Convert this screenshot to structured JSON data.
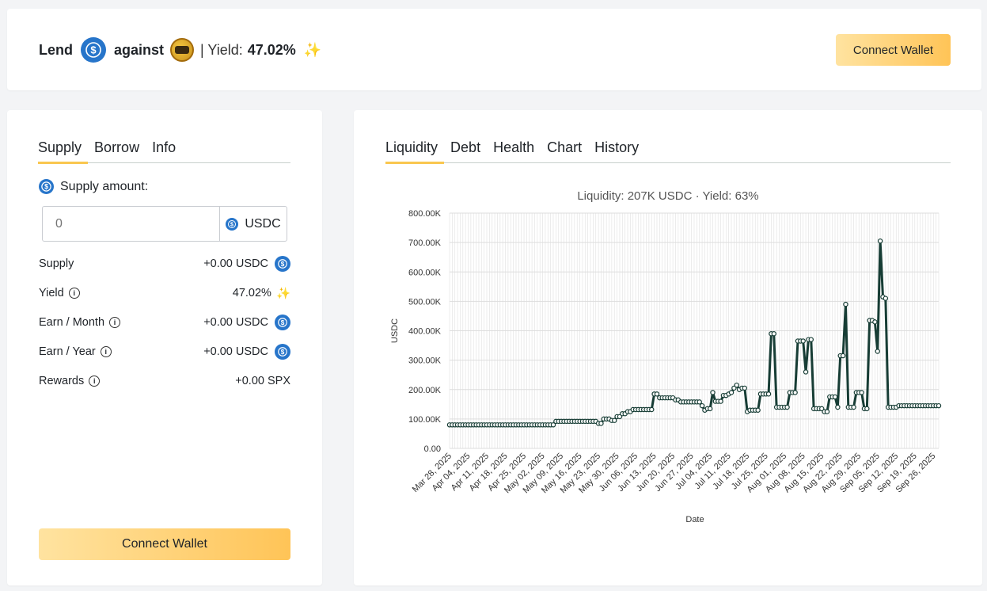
{
  "header": {
    "lend": "Lend",
    "against": "against",
    "yield_label": "| Yield:",
    "yield_value": "47.02%",
    "connect_wallet": "Connect Wallet"
  },
  "left_panel": {
    "tabs": [
      "Supply",
      "Borrow",
      "Info"
    ],
    "supply_amount_label": "Supply amount:",
    "input_placeholder": "0",
    "input_unit": "USDC",
    "rows": [
      {
        "label": "Supply",
        "value": "+0.00 USDC"
      },
      {
        "label": "Yield",
        "value": "47.02%"
      },
      {
        "label": "Earn / Month",
        "value": "+0.00 USDC"
      },
      {
        "label": "Earn / Year",
        "value": "+0.00 USDC"
      },
      {
        "label": "Rewards",
        "value": "+0.00 SPX"
      }
    ],
    "connect_wallet": "Connect Wallet"
  },
  "right_panel": {
    "tabs": [
      "Liquidity",
      "Debt",
      "Health",
      "Chart",
      "History"
    ]
  },
  "colors": {
    "accent_yellow": "#ffc457",
    "usdc_blue": "#2775ca",
    "line": "#173d35"
  },
  "chart_data": {
    "type": "line",
    "title": "Liquidity: 207K USDC · Yield: 63%",
    "xlabel": "Date",
    "ylabel": "USDC",
    "ylim": [
      0,
      800000
    ],
    "y_ticks": [
      "0.00",
      "100.00K",
      "200.00K",
      "300.00K",
      "400.00K",
      "500.00K",
      "600.00K",
      "700.00K",
      "800.00K"
    ],
    "x_ticks": [
      "Mar 28, 2025",
      "Apr 04, 2025",
      "Apr 11, 2025",
      "Apr 18, 2025",
      "Apr 25, 2025",
      "May 02, 2025",
      "May 09, 2025",
      "May 16, 2025",
      "May 23, 2025",
      "May 30, 2025",
      "Jun 06, 2025",
      "Jun 13, 2025",
      "Jun 20, 2025",
      "Jun 27, 2025",
      "Jul 04, 2025",
      "Jul 11, 2025",
      "Jul 18, 2025",
      "Jul 25, 2025",
      "Aug 01, 2025",
      "Aug 08, 2025",
      "Aug 15, 2025",
      "Aug 22, 2025",
      "Aug 29, 2025",
      "Sep 05, 2025",
      "Sep 12, 2025",
      "Sep 19, 2025",
      "Sep 26, 2025"
    ],
    "grid": true,
    "series": [
      {
        "values": [
          80000,
          80000,
          80000,
          80000,
          80000,
          80000,
          80000,
          80000,
          80000,
          80000,
          80000,
          80000,
          80000,
          80000,
          80000,
          80000,
          80000,
          80000,
          80000,
          80000,
          80000,
          80000,
          80000,
          80000,
          80000,
          80000,
          80000,
          80000,
          80000,
          80000,
          80000,
          80000,
          80000,
          80000,
          80000,
          80000,
          80000,
          80000,
          80000,
          80000,
          92000,
          92000,
          92000,
          92000,
          92000,
          92000,
          92000,
          92000,
          92000,
          92000,
          92000,
          92000,
          92000,
          92000,
          92000,
          92000,
          85000,
          85000,
          100000,
          100000,
          100000,
          95000,
          95000,
          108000,
          108000,
          118000,
          118000,
          125000,
          125000,
          132000,
          132000,
          132000,
          132000,
          132000,
          132000,
          132000,
          132000,
          185000,
          185000,
          172000,
          172000,
          172000,
          172000,
          172000,
          172000,
          165000,
          165000,
          158000,
          158000,
          158000,
          158000,
          158000,
          158000,
          158000,
          158000,
          145000,
          130000,
          135000,
          135000,
          190000,
          160000,
          160000,
          160000,
          180000,
          180000,
          185000,
          190000,
          205000,
          215000,
          200000,
          205000,
          205000,
          125000,
          130000,
          130000,
          130000,
          130000,
          185000,
          185000,
          185000,
          185000,
          390000,
          390000,
          140000,
          140000,
          140000,
          140000,
          140000,
          190000,
          190000,
          190000,
          365000,
          365000,
          365000,
          260000,
          370000,
          370000,
          135000,
          135000,
          135000,
          135000,
          125000,
          125000,
          175000,
          175000,
          175000,
          140000,
          315000,
          315000,
          490000,
          140000,
          140000,
          140000,
          190000,
          190000,
          190000,
          135000,
          135000,
          435000,
          435000,
          430000,
          330000,
          705000,
          515000,
          510000,
          140000,
          140000,
          140000,
          140000,
          145000,
          145000,
          145000,
          145000,
          145000,
          145000,
          145000,
          145000,
          145000,
          145000,
          145000,
          145000,
          145000,
          145000,
          145000,
          145000
        ]
      }
    ]
  }
}
